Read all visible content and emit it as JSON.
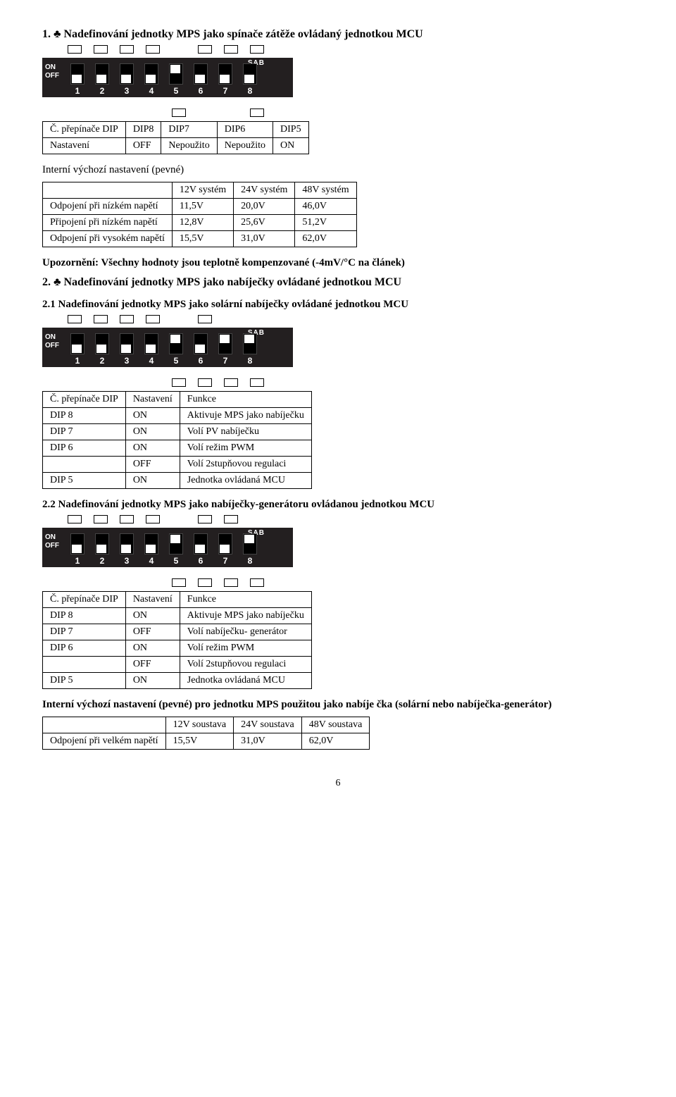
{
  "page_number": "6",
  "sections": {
    "s1": {
      "title": "1. ♣ Nadefinování jednotky MPS jako spínače zátěže ovládaný jednotkou MCU",
      "dip": {
        "sab": "SAB",
        "on_label": "ON",
        "off_label": "OFF",
        "numbers": [
          "1",
          "2",
          "3",
          "4",
          "5",
          "6",
          "7",
          "8"
        ],
        "positions": [
          "off",
          "off",
          "off",
          "off",
          "on",
          "off",
          "off",
          "off"
        ],
        "top_markers": [
          true,
          true,
          true,
          true,
          false,
          true,
          true,
          true
        ],
        "bottom_markers": [
          false,
          false,
          false,
          false,
          true,
          false,
          false,
          true
        ]
      },
      "table1": {
        "headers": [
          "Č. přepínače DIP",
          "DIP8",
          "DIP7",
          "DIP6",
          "DIP5"
        ],
        "row": [
          "Nastavení",
          "OFF",
          "Nepoužito",
          "Nepoužito",
          "ON"
        ]
      },
      "table2_caption": "Interní výchozí nastavení (pevné)",
      "table2": {
        "cols": [
          "",
          "12V systém",
          "24V systém",
          "48V systém"
        ],
        "rows": [
          [
            "Odpojení při nízkém napětí",
            "11,5V",
            "20,0V",
            "46,0V"
          ],
          [
            "Připojení při nízkém napětí",
            "12,8V",
            "25,6V",
            "51,2V"
          ],
          [
            "Odpojení při vysokém napětí",
            "15,5V",
            "31,0V",
            "62,0V"
          ]
        ]
      },
      "note": "Upozornění: Všechny hodnoty jsou teplotně kompenzované (-4mV/°C na článek)"
    },
    "s2": {
      "title": "2. ♣ Nadefinování jednotky MPS jako nabíječky ovládané jednotkou MCU",
      "s21_title": "2.1 Nadefinování jednotky MPS jako solární nabíječky ovládané jednotkou MCU",
      "dip21": {
        "sab": "SAB",
        "on_label": "ON",
        "off_label": "OFF",
        "numbers": [
          "1",
          "2",
          "3",
          "4",
          "5",
          "6",
          "7",
          "8"
        ],
        "positions": [
          "off",
          "off",
          "off",
          "off",
          "on",
          "off",
          "on",
          "on"
        ],
        "top_markers": [
          true,
          true,
          true,
          true,
          false,
          true,
          false,
          false
        ],
        "bottom_markers": [
          false,
          false,
          false,
          false,
          true,
          true,
          true,
          true
        ]
      },
      "table21": {
        "cols": [
          "Č. přepínače DIP",
          "Nastavení",
          "Funkce"
        ],
        "rows": [
          [
            "DIP 8",
            "ON",
            "Aktivuje MPS jako nabíječku"
          ],
          [
            "DIP 7",
            "ON",
            "Volí PV nabíječku"
          ],
          [
            "DIP 6",
            "ON",
            "Volí režim PWM"
          ],
          [
            "",
            "OFF",
            "Volí 2stupňovou regulaci"
          ],
          [
            "DIP 5",
            "ON",
            "Jednotka ovládaná MCU"
          ]
        ]
      },
      "s22_title": "2.2 Nadefinování jednotky MPS jako nabíječky-generátoru ovládanou jednotkou MCU",
      "dip22": {
        "sab": "SAB",
        "on_label": "ON",
        "off_label": "OFF",
        "numbers": [
          "1",
          "2",
          "3",
          "4",
          "5",
          "6",
          "7",
          "8"
        ],
        "positions": [
          "off",
          "off",
          "off",
          "off",
          "on",
          "off",
          "off",
          "on"
        ],
        "top_markers": [
          true,
          true,
          true,
          true,
          false,
          true,
          true,
          false
        ],
        "bottom_markers": [
          false,
          false,
          false,
          false,
          true,
          true,
          true,
          true
        ]
      },
      "table22": {
        "cols": [
          "Č. přepínače DIP",
          "Nastavení",
          "Funkce"
        ],
        "rows": [
          [
            "DIP 8",
            "ON",
            "Aktivuje MPS jako nabíječku"
          ],
          [
            "DIP 7",
            "OFF",
            "Volí nabíječku- generátor"
          ],
          [
            "DIP 6",
            "ON",
            "Volí režim PWM"
          ],
          [
            "",
            "OFF",
            "Volí 2stupňovou regulaci"
          ],
          [
            "DIP 5",
            "ON",
            "Jednotka ovládaná MCU"
          ]
        ]
      },
      "footnote": "Interní výchozí nastavení (pevné) pro jednotku MPS použitou jako nabíje čka (solární nebo nabíječka-generátor)",
      "table23": {
        "cols": [
          "",
          "12V soustava",
          "24V soustava",
          "48V soustava"
        ],
        "rows": [
          [
            "Odpojení při velkém napětí",
            "15,5V",
            "31,0V",
            "62,0V"
          ]
        ]
      }
    }
  }
}
